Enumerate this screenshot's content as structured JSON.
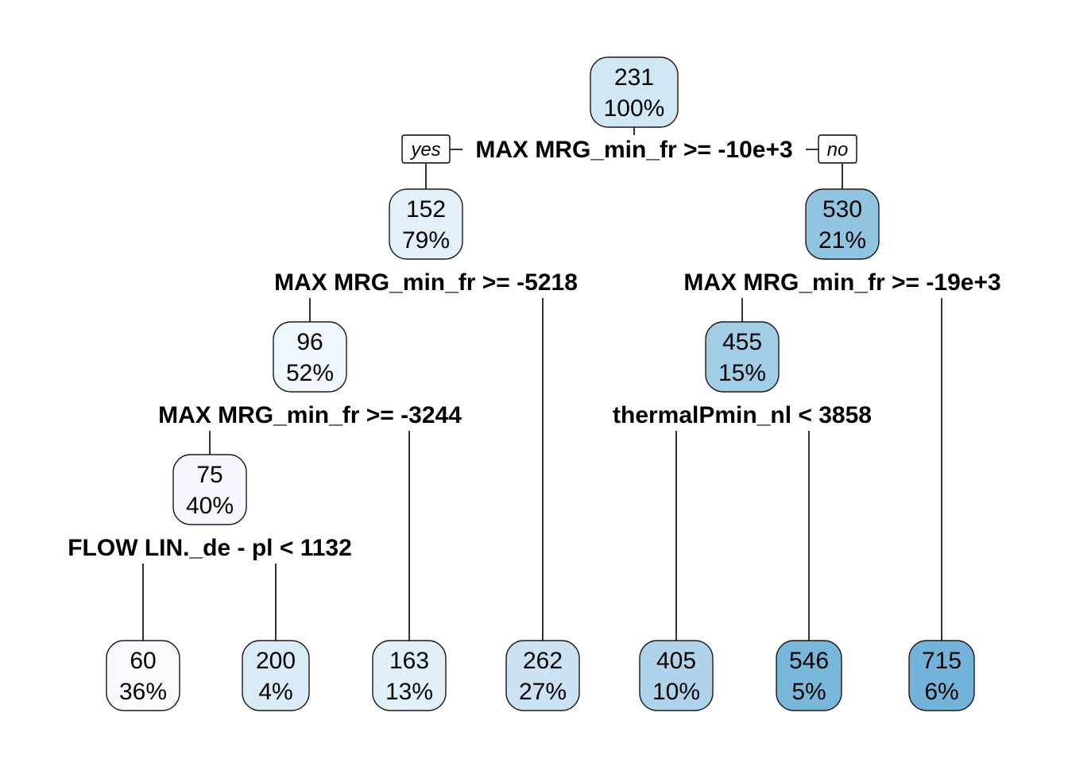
{
  "tree": {
    "colors": {
      "light": "#f7fbff",
      "dark": "#6aaed6"
    },
    "tags": {
      "yes": "yes",
      "no": "no"
    },
    "nodes": [
      {
        "id": "n1",
        "value": "231",
        "percent": "100%",
        "split": "MAX MRG_min_fr >= -10e+3",
        "shade": 0.26
      },
      {
        "id": "n2",
        "value": "152",
        "percent": "79%",
        "split": "MAX MRG_min_fr >= -5218",
        "shade": 0.14
      },
      {
        "id": "n3",
        "value": "530",
        "percent": "21%",
        "split": "MAX MRG_min_fr >= -19e+3",
        "shade": 0.72
      },
      {
        "id": "n4",
        "value": "96",
        "percent": "52%",
        "split": "MAX MRG_min_fr >= -3244",
        "shade": 0.06
      },
      {
        "id": "n7",
        "value": "455",
        "percent": "15%",
        "split": "thermalPmin_nl < 3858",
        "shade": 0.6
      },
      {
        "id": "n8",
        "value": "75",
        "percent": "40%",
        "split": "FLOW LIN._de - pl < 1132",
        "shade": 0.03
      },
      {
        "id": "n16",
        "value": "60",
        "percent": "36%",
        "split": "",
        "shade": 0.0
      },
      {
        "id": "n17",
        "value": "200",
        "percent": "4%",
        "split": "",
        "shade": 0.21
      },
      {
        "id": "n9",
        "value": "163",
        "percent": "13%",
        "split": "",
        "shade": 0.16
      },
      {
        "id": "n5",
        "value": "262",
        "percent": "27%",
        "split": "",
        "shade": 0.32
      },
      {
        "id": "n14",
        "value": "405",
        "percent": "10%",
        "split": "",
        "shade": 0.52
      },
      {
        "id": "n15",
        "value": "546",
        "percent": "5%",
        "split": "",
        "shade": 0.9
      },
      {
        "id": "n6",
        "value": "715",
        "percent": "6%",
        "split": "",
        "shade": 0.93
      }
    ],
    "edges": [
      {
        "from": "n1",
        "to": "n2"
      },
      {
        "from": "n1",
        "to": "n3"
      },
      {
        "from": "n2",
        "to": "n4"
      },
      {
        "from": "n2",
        "to": "n5"
      },
      {
        "from": "n3",
        "to": "n7"
      },
      {
        "from": "n3",
        "to": "n6"
      },
      {
        "from": "n4",
        "to": "n8"
      },
      {
        "from": "n4",
        "to": "n9"
      },
      {
        "from": "n7",
        "to": "n14"
      },
      {
        "from": "n7",
        "to": "n15"
      },
      {
        "from": "n8",
        "to": "n16"
      },
      {
        "from": "n8",
        "to": "n17"
      }
    ]
  }
}
